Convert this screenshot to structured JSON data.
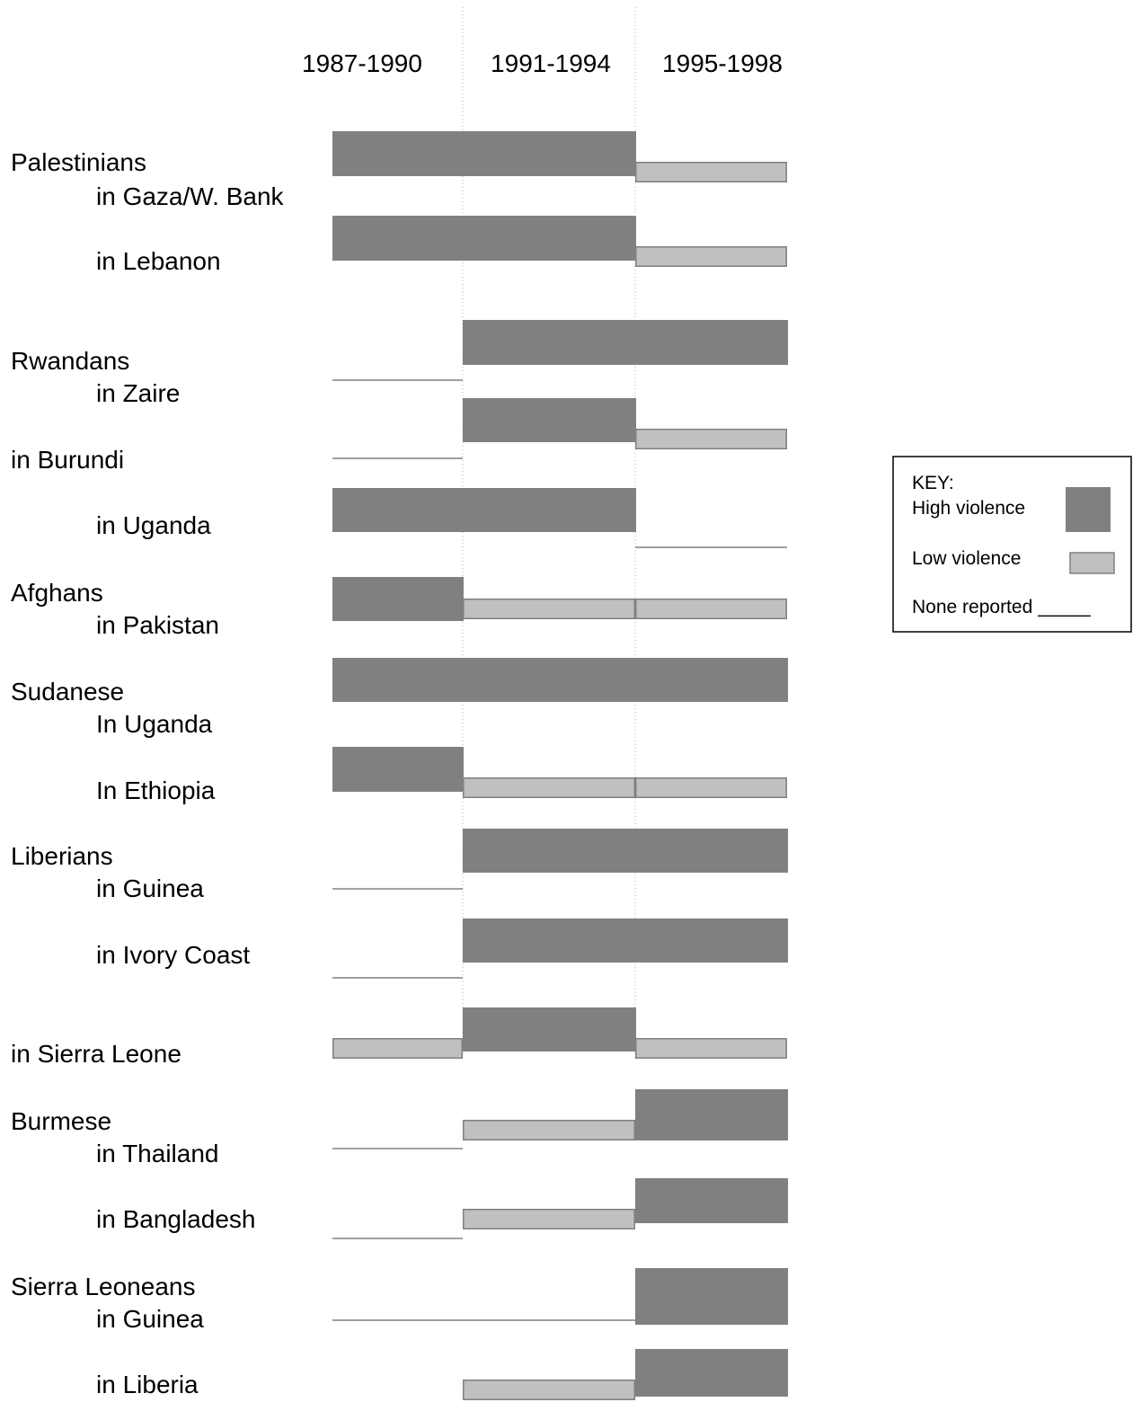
{
  "chart_data": {
    "type": "timeline",
    "periods": [
      "1987-1990",
      "1991-1994",
      "1995-1998"
    ],
    "levels": {
      "high": "High violence",
      "low": "Low violence",
      "none": "None reported"
    },
    "colors": {
      "high": "#808080",
      "low": "#c0c0c0",
      "none": "#808080",
      "border": "#808080",
      "divider": "#b0b0b0"
    },
    "groups": [
      {
        "label": "Palestinians",
        "rows": [
          {
            "label": "in Gaza/W. Bank",
            "values": [
              "high",
              "high",
              "low"
            ]
          },
          {
            "label": "in Lebanon",
            "values": [
              "high",
              "high",
              "low"
            ]
          }
        ]
      },
      {
        "label": "Rwandans",
        "rows": [
          {
            "label": "in Zaire",
            "values": [
              "none",
              "high",
              "high"
            ]
          },
          {
            "label": "in Burundi",
            "values": [
              "none",
              "high",
              "low"
            ]
          },
          {
            "label": "in Uganda",
            "values": [
              "high",
              "high",
              "none"
            ]
          }
        ]
      },
      {
        "label": "Afghans",
        "rows": [
          {
            "label": "in Pakistan",
            "values": [
              "high",
              "low",
              "low"
            ]
          }
        ]
      },
      {
        "label": "Sudanese",
        "rows": [
          {
            "label": "In Uganda",
            "values": [
              "high",
              "high",
              "high"
            ]
          },
          {
            "label": "In Ethiopia",
            "values": [
              "high",
              "low",
              "low"
            ]
          }
        ]
      },
      {
        "label": "Liberians",
        "rows": [
          {
            "label": "in Guinea",
            "values": [
              "none",
              "high",
              "high"
            ]
          },
          {
            "label": "in Ivory Coast",
            "values": [
              "none",
              "high",
              "high"
            ]
          },
          {
            "label": "in Sierra Leone",
            "values": [
              "low",
              "high",
              "low"
            ]
          }
        ]
      },
      {
        "label": "Burmese",
        "rows": [
          {
            "label": "in Thailand",
            "values": [
              "none",
              "low",
              "high"
            ]
          },
          {
            "label": "in Bangladesh",
            "values": [
              "none",
              "low",
              "high"
            ]
          }
        ]
      },
      {
        "label": "Sierra Leoneans",
        "rows": [
          {
            "label": "in Guinea",
            "values": [
              "none",
              "none",
              "high"
            ]
          },
          {
            "label": "in Liberia",
            "values": [
              null,
              "low",
              "high"
            ]
          }
        ]
      }
    ],
    "legend": {
      "title": "KEY:",
      "high": "High violence",
      "low": "Low violence",
      "none": "None reported",
      "none_line": "_____",
      "position": "right"
    }
  }
}
